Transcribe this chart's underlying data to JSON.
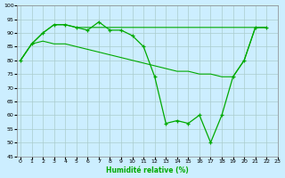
{
  "xlabel": "Humidité relative (%)",
  "background_color": "#cceeff",
  "grid_color": "#aacccc",
  "line_color": "#00aa00",
  "line1_markers": [
    80,
    86,
    90,
    93,
    93,
    92,
    91,
    94,
    91,
    91,
    89,
    85,
    74,
    57,
    58,
    57,
    60,
    50,
    60,
    74,
    80,
    92,
    92
  ],
  "line2": [
    80,
    86,
    90,
    93,
    93,
    92,
    92,
    92,
    92,
    92,
    92,
    92,
    92,
    92,
    92,
    92,
    92,
    92,
    92,
    92,
    92,
    92,
    92
  ],
  "line3": [
    80,
    86,
    87,
    86,
    86,
    85,
    84,
    83,
    82,
    81,
    80,
    79,
    78,
    77,
    76,
    76,
    75,
    75,
    74,
    74,
    80,
    92,
    92
  ],
  "xlim": [
    -0.3,
    22.3
  ],
  "ylim": [
    45,
    100
  ],
  "yticks": [
    45,
    50,
    55,
    60,
    65,
    70,
    75,
    80,
    85,
    90,
    95,
    100
  ],
  "xticks": [
    0,
    1,
    2,
    3,
    4,
    5,
    6,
    7,
    8,
    9,
    10,
    11,
    12,
    13,
    14,
    15,
    16,
    17,
    18,
    19,
    20,
    21,
    22,
    23
  ]
}
